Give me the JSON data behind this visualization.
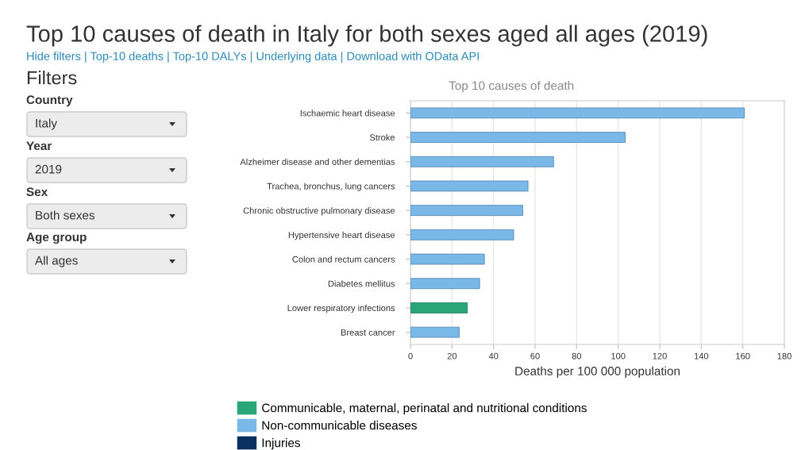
{
  "chart_data": [
    {
      "type": "other",
      "title": "Top 10 causes of death in Italy for both sexes aged all ages (2019)",
      "subtitle": "Hide filters | Top-10 deaths | Top-10 DALYs | Underlying data | Download with OData API",
      "annotations": [
        "Filters",
        "Country",
        "Italy",
        "Year",
        "2019",
        "Sex",
        "Both sexes",
        "Age group",
        "All ages"
      ]
    },
    {
      "type": "bar",
      "orientation": "horizontal",
      "title": "Top 10 causes of death",
      "xlabel": "Deaths per 100 000 population",
      "categories": [
        "Ischaemic heart disease",
        "Stroke",
        "Alzheimer disease and other dementias",
        "Trachea, bronchus, lung cancers",
        "Chronic obstructive pulmonary disease",
        "Hypertensive heart disease",
        "Colon and rectum cancers",
        "Diabetes mellitus",
        "Lower respiratory infections",
        "Breast cancer"
      ],
      "series": [
        {
          "name": "Communicable, maternal, perinatal and nutritional conditions",
          "color": "#2aa57a",
          "values": [
            null,
            null,
            null,
            null,
            null,
            null,
            null,
            null,
            27.4,
            null
          ]
        },
        {
          "name": "Non-communicable diseases",
          "color": "#7ab8e8",
          "values": [
            160.7,
            103.4,
            68.9,
            56.6,
            54.1,
            49.7,
            35.6,
            33.3,
            null,
            23.5
          ]
        },
        {
          "name": "Injuries",
          "color": "#0b2f5e",
          "values": [
            null,
            null,
            null,
            null,
            null,
            null,
            null,
            null,
            null,
            null
          ]
        }
      ],
      "xlim": [
        0,
        180
      ],
      "xticks": [
        0,
        20,
        40,
        60,
        80,
        100,
        120,
        140,
        160,
        180
      ],
      "grid": true,
      "legend": "bottom"
    }
  ]
}
